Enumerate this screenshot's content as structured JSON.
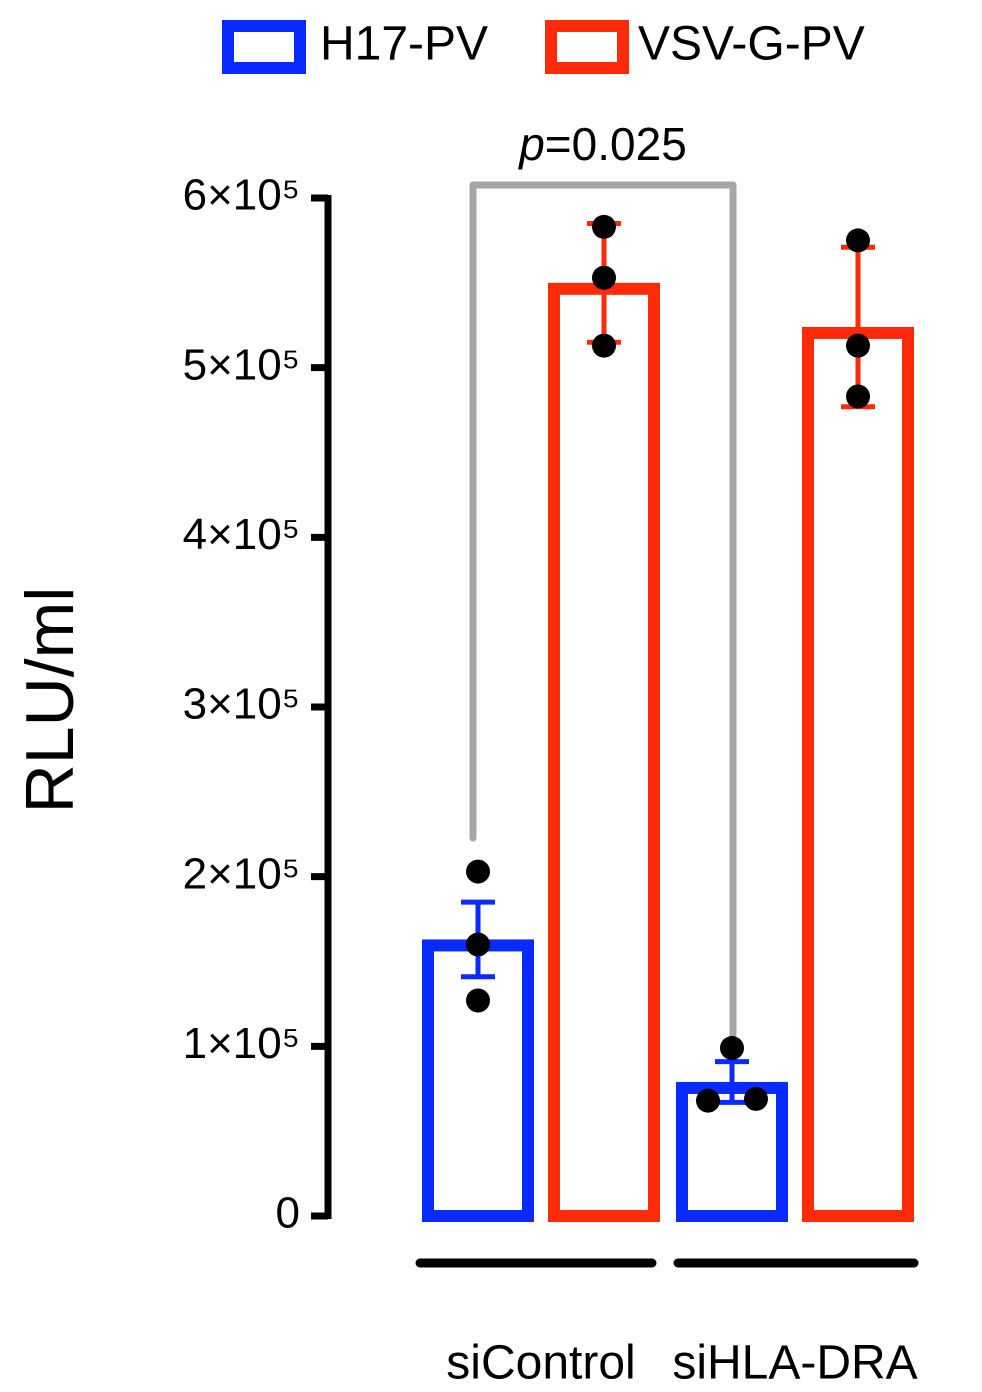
{
  "chart_data": {
    "type": "bar",
    "y_label": "RLU/ml",
    "categories": [
      "siControl",
      "siHLA-DRA"
    ],
    "series": [
      {
        "name": "H17-PV",
        "color": "#0a2bff",
        "values": [
          163000,
          79000
        ],
        "errors": [
          22000,
          12000
        ],
        "points": [
          [
            203000,
            160000,
            127000
          ],
          [
            99000,
            68000,
            69000
          ]
        ]
      },
      {
        "name": "VSV-G-PV",
        "color": "#ff2a0a",
        "values": [
          550000,
          524000
        ],
        "errors": [
          35000,
          47000
        ],
        "points": [
          [
            583000,
            553000,
            513000
          ],
          [
            575000,
            513000,
            483000
          ]
        ]
      }
    ],
    "ylim": [
      0,
      600000
    ],
    "yticks": [
      0,
      {
        "value": 100000,
        "label": "1×10⁵"
      },
      {
        "value": 200000,
        "label": "2×10⁵"
      },
      {
        "value": 300000,
        "label": "3×10⁵"
      },
      {
        "value": 400000,
        "label": "4×10⁵"
      },
      {
        "value": 500000,
        "label": "5×10⁵"
      },
      {
        "value": 600000,
        "label": "6×10⁵"
      }
    ],
    "annotation": {
      "symbol": "p",
      "text": "=0.025"
    }
  }
}
